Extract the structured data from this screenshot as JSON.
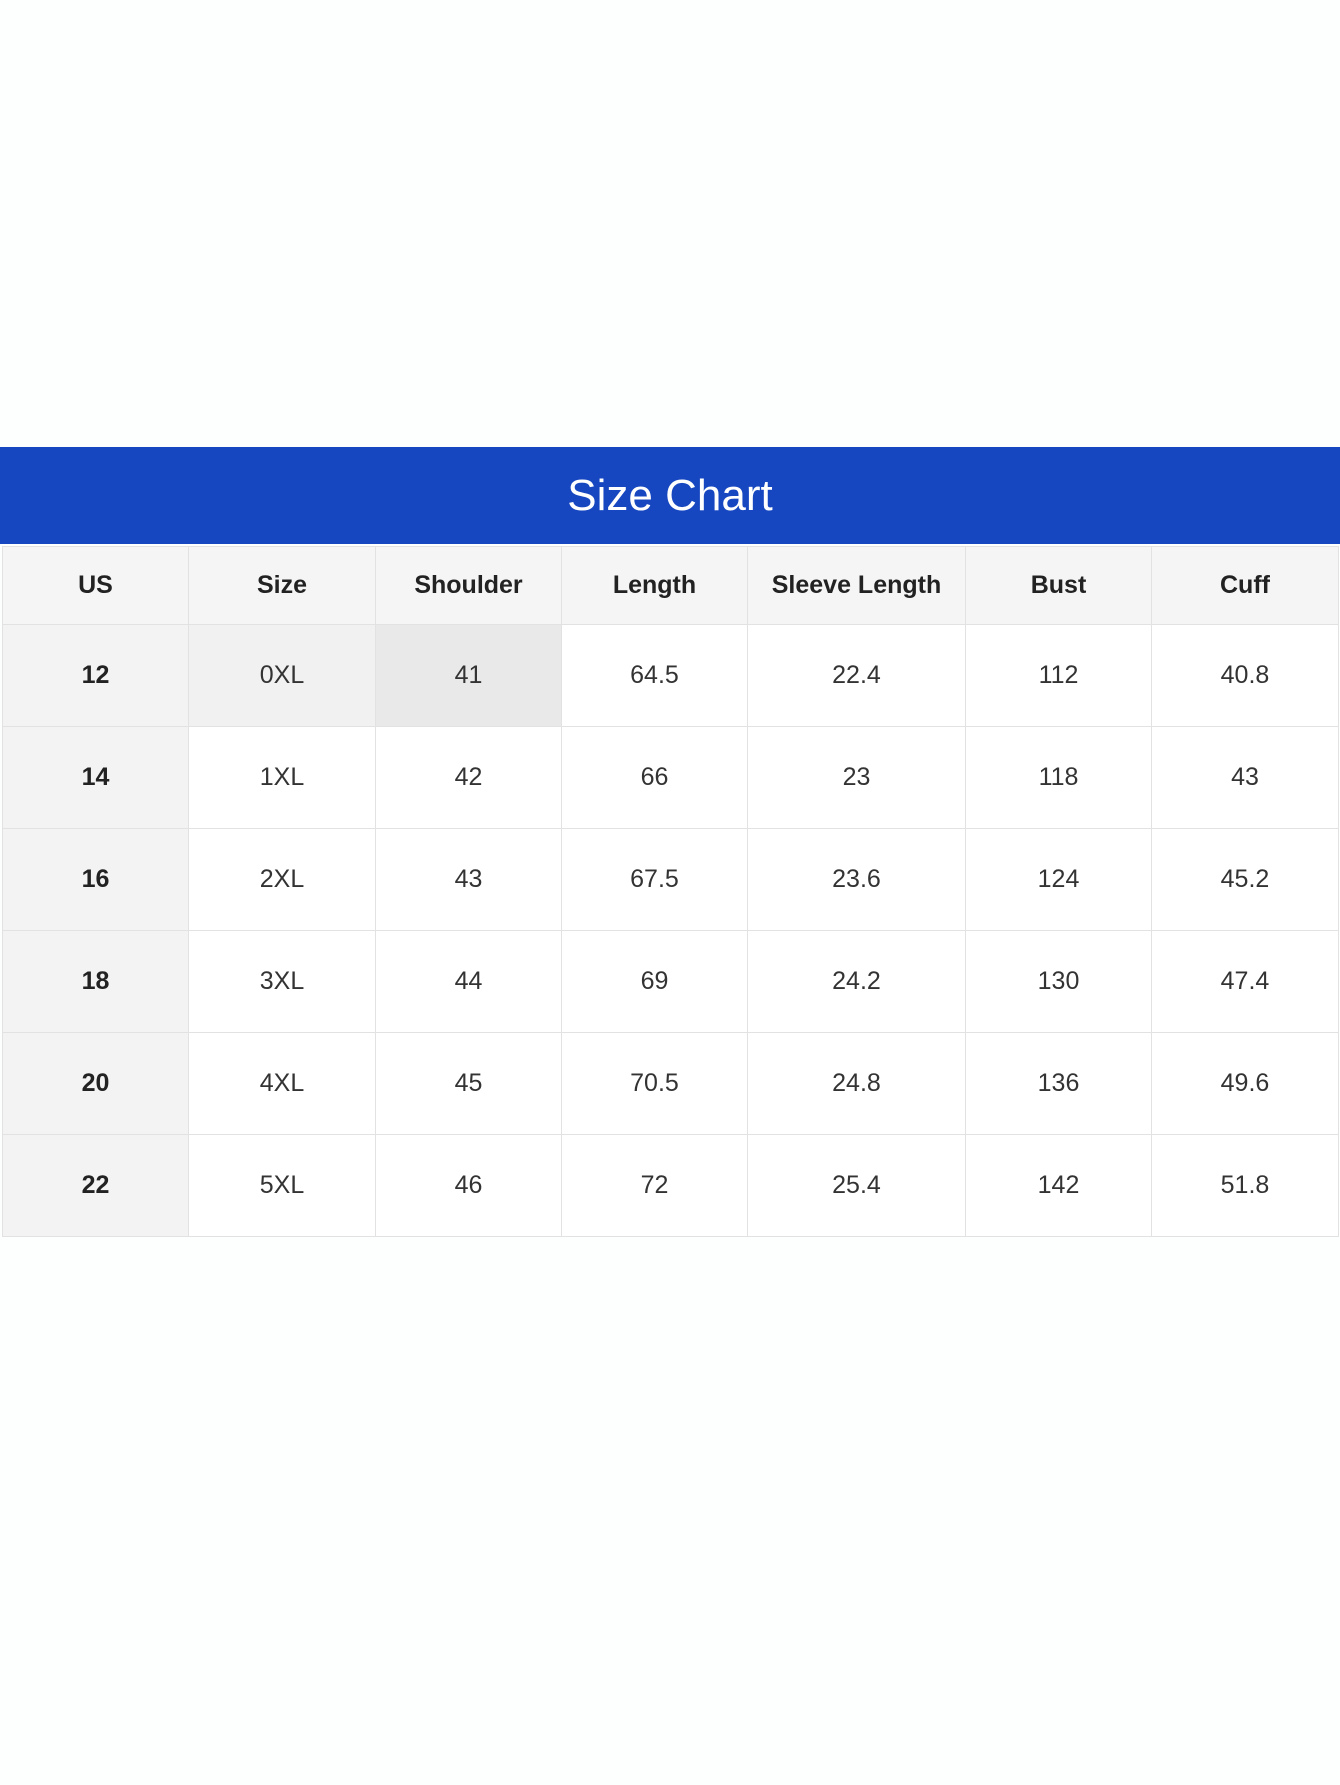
{
  "header": {
    "title": "Size Chart"
  },
  "table": {
    "columns": [
      "US",
      "Size",
      "Shoulder",
      "Length",
      "Sleeve Length",
      "Bust",
      "Cuff"
    ],
    "rows": [
      [
        "12",
        "0XL",
        "41",
        "64.5",
        "22.4",
        "112",
        "40.8"
      ],
      [
        "14",
        "1XL",
        "42",
        "66",
        "23",
        "118",
        "43"
      ],
      [
        "16",
        "2XL",
        "43",
        "67.5",
        "23.6",
        "124",
        "45.2"
      ],
      [
        "18",
        "3XL",
        "44",
        "69",
        "24.2",
        "130",
        "47.4"
      ],
      [
        "20",
        "4XL",
        "45",
        "70.5",
        "24.8",
        "136",
        "49.6"
      ],
      [
        "22",
        "5XL",
        "46",
        "72",
        "25.4",
        "142",
        "51.8"
      ]
    ]
  }
}
